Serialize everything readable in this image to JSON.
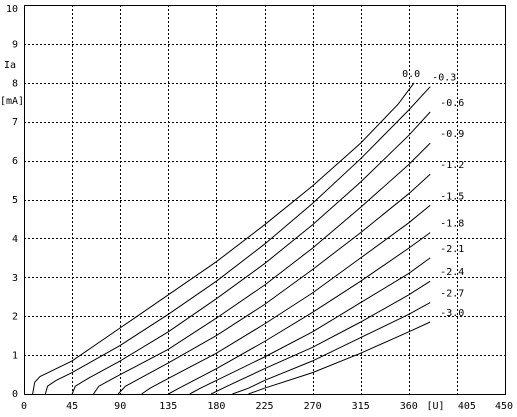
{
  "chart_data": {
    "type": "line",
    "title": "",
    "xlabel": "[U]",
    "ylabel_line1": "Ia",
    "ylabel_line2": "[mA]",
    "xlim": [
      0,
      450
    ],
    "ylim": [
      0,
      10
    ],
    "x_ticks": [
      0,
      45,
      90,
      135,
      180,
      225,
      270,
      315,
      360,
      405,
      450
    ],
    "y_ticks": [
      0,
      1,
      2,
      3,
      4,
      5,
      6,
      7,
      8,
      9,
      10
    ],
    "grid": true,
    "series": [
      {
        "name": "0.0",
        "points": [
          [
            8,
            0
          ],
          [
            10,
            0.3
          ],
          [
            15,
            0.45
          ],
          [
            45,
            0.85
          ],
          [
            90,
            1.7
          ],
          [
            135,
            2.55
          ],
          [
            180,
            3.4
          ],
          [
            225,
            4.35
          ],
          [
            270,
            5.35
          ],
          [
            315,
            6.45
          ],
          [
            350,
            7.45
          ],
          [
            365,
            8.0
          ]
        ]
      },
      {
        "name": "-0.3",
        "points": [
          [
            20,
            0
          ],
          [
            22,
            0.2
          ],
          [
            30,
            0.35
          ],
          [
            45,
            0.55
          ],
          [
            90,
            1.25
          ],
          [
            135,
            2.05
          ],
          [
            180,
            2.9
          ],
          [
            225,
            3.85
          ],
          [
            270,
            4.9
          ],
          [
            315,
            6.05
          ],
          [
            360,
            7.3
          ],
          [
            380,
            7.9
          ]
        ]
      },
      {
        "name": "-0.6",
        "points": [
          [
            45,
            0
          ],
          [
            48,
            0.2
          ],
          [
            60,
            0.4
          ],
          [
            90,
            0.85
          ],
          [
            135,
            1.6
          ],
          [
            180,
            2.45
          ],
          [
            225,
            3.35
          ],
          [
            270,
            4.35
          ],
          [
            315,
            5.45
          ],
          [
            360,
            6.65
          ],
          [
            380,
            7.25
          ]
        ]
      },
      {
        "name": "-0.9",
        "points": [
          [
            65,
            0
          ],
          [
            70,
            0.2
          ],
          [
            90,
            0.5
          ],
          [
            135,
            1.15
          ],
          [
            180,
            1.95
          ],
          [
            225,
            2.8
          ],
          [
            270,
            3.75
          ],
          [
            315,
            4.8
          ],
          [
            360,
            5.9
          ],
          [
            380,
            6.45
          ]
        ]
      },
      {
        "name": "-1.2",
        "points": [
          [
            88,
            0
          ],
          [
            95,
            0.2
          ],
          [
            135,
            0.8
          ],
          [
            180,
            1.5
          ],
          [
            225,
            2.3
          ],
          [
            270,
            3.2
          ],
          [
            315,
            4.15
          ],
          [
            360,
            5.15
          ],
          [
            380,
            5.65
          ]
        ]
      },
      {
        "name": "-1.5",
        "points": [
          [
            110,
            0
          ],
          [
            118,
            0.15
          ],
          [
            135,
            0.4
          ],
          [
            180,
            1.05
          ],
          [
            225,
            1.8
          ],
          [
            270,
            2.6
          ],
          [
            315,
            3.5
          ],
          [
            360,
            4.4
          ],
          [
            380,
            4.85
          ]
        ]
      },
      {
        "name": "-1.8",
        "points": [
          [
            135,
            0
          ],
          [
            145,
            0.15
          ],
          [
            180,
            0.65
          ],
          [
            225,
            1.35
          ],
          [
            270,
            2.1
          ],
          [
            315,
            2.9
          ],
          [
            360,
            3.75
          ],
          [
            380,
            4.15
          ]
        ]
      },
      {
        "name": "-2.1",
        "points": [
          [
            155,
            0
          ],
          [
            165,
            0.15
          ],
          [
            180,
            0.35
          ],
          [
            225,
            0.95
          ],
          [
            270,
            1.6
          ],
          [
            315,
            2.35
          ],
          [
            360,
            3.1
          ],
          [
            380,
            3.5
          ]
        ]
      },
      {
        "name": "-2.4",
        "points": [
          [
            175,
            0
          ],
          [
            190,
            0.2
          ],
          [
            225,
            0.65
          ],
          [
            270,
            1.2
          ],
          [
            315,
            1.85
          ],
          [
            360,
            2.55
          ],
          [
            380,
            2.9
          ]
        ]
      },
      {
        "name": "-2.7",
        "points": [
          [
            195,
            0
          ],
          [
            210,
            0.15
          ],
          [
            225,
            0.35
          ],
          [
            270,
            0.85
          ],
          [
            315,
            1.45
          ],
          [
            360,
            2.05
          ],
          [
            380,
            2.35
          ]
        ]
      },
      {
        "name": "-3.0",
        "points": [
          [
            210,
            0
          ],
          [
            225,
            0.15
          ],
          [
            270,
            0.55
          ],
          [
            315,
            1.05
          ],
          [
            360,
            1.6
          ],
          [
            380,
            1.85
          ]
        ]
      }
    ]
  }
}
